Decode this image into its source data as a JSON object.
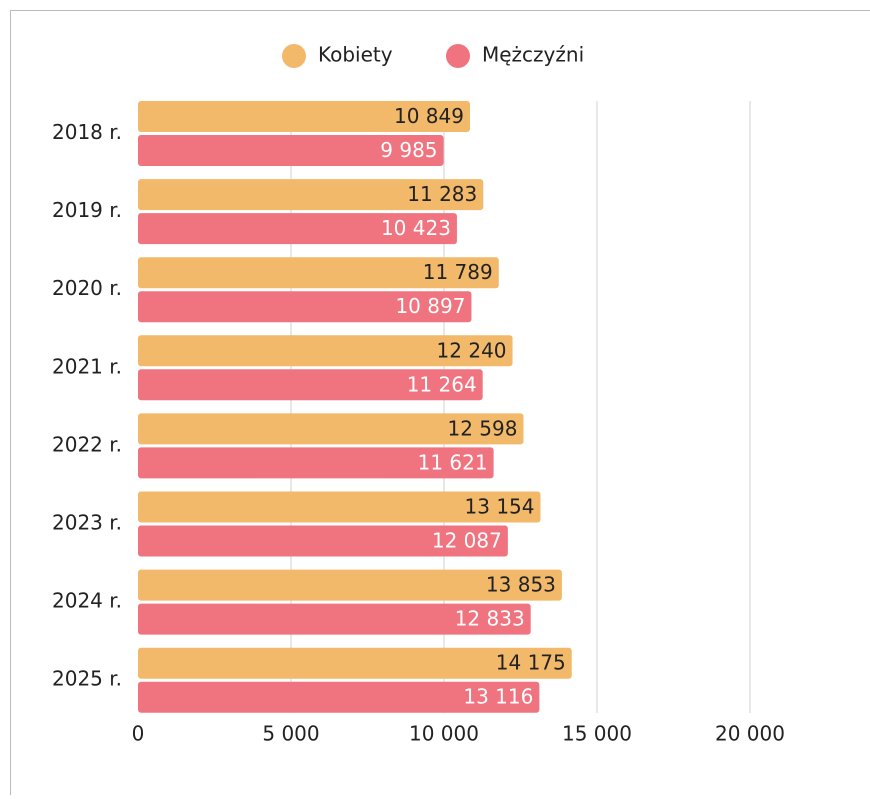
{
  "chart_data": {
    "type": "bar",
    "orientation": "horizontal",
    "categories": [
      "2018 r.",
      "2019 r.",
      "2020 r.",
      "2021 r.",
      "2022 r.",
      "2023 r.",
      "2024 r.",
      "2025 r."
    ],
    "series": [
      {
        "name": "Kobiety",
        "color": "#f2b96a",
        "values": [
          10849,
          11283,
          11789,
          12240,
          12598,
          13154,
          13853,
          14175
        ],
        "value_labels": [
          "10 849",
          "11 283",
          "11 789",
          "12 240",
          "12 598",
          "13 154",
          "13 853",
          "14 175"
        ]
      },
      {
        "name": "Mężczyźni",
        "color": "#f07480",
        "values": [
          9985,
          10423,
          10897,
          11264,
          11621,
          12087,
          12833,
          13116
        ],
        "value_labels": [
          "9 985",
          "10 423",
          "10 897",
          "11 264",
          "11 621",
          "12 087",
          "12 833",
          "13 116"
        ]
      }
    ],
    "xlim": [
      0,
      20000
    ],
    "xticks": [
      0,
      {
        "value": 5000,
        "label": "5 000"
      },
      {
        "value": 10000,
        "label": "10 000"
      },
      {
        "value": 15000,
        "label": "15 000"
      },
      {
        "value": 20000,
        "label": "20 000"
      }
    ],
    "grid": true,
    "legend": "top"
  }
}
